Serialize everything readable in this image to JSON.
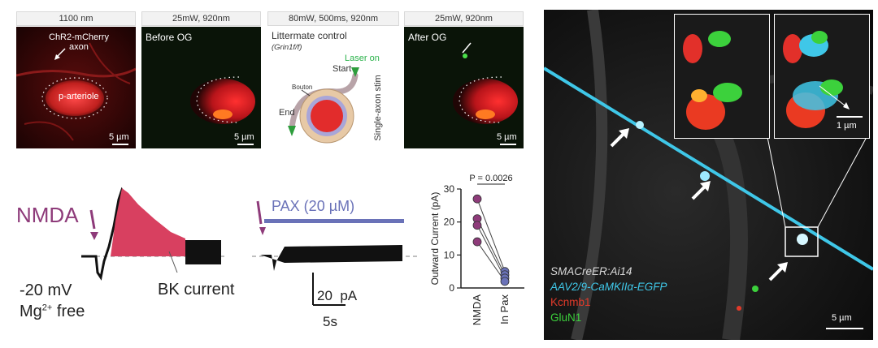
{
  "panel_headers": [
    "1100 nm",
    "25mW, 920nm",
    "80mW, 500ms, 920nm",
    "25mW, 920nm"
  ],
  "panel1": {
    "axon_label": "ChR2-mCherry\naxon",
    "vessel_label": "p-arteriole",
    "scale": "5 µm"
  },
  "panel2": {
    "title": "Before OG",
    "scale": "5 µm"
  },
  "panel3": {
    "title": "Littermate control",
    "genotype": "(Grin1f/f)",
    "laser": "Laser on",
    "start": "Start",
    "bouton": "Bouton",
    "end": "End",
    "stim": "Single-axon stim"
  },
  "panel4": {
    "title": "After OG",
    "scale": "5 µm"
  },
  "traces": {
    "nmda_label": "NMDA",
    "voltage": "-20 mV",
    "mg_free": "Mg",
    "mg_sup": "2+",
    "mg_free_suffix": " free",
    "bk_label": "BK current",
    "pax_label": "PAX (20 µM)",
    "scale_y": "20  pA",
    "scale_x": "5s"
  },
  "chart_data": {
    "type": "scatter",
    "title": "",
    "ylabel": "Outward Current (pA)",
    "categories": [
      "NMDA",
      "In Pax"
    ],
    "ylim": [
      0,
      30
    ],
    "yticks": [
      0,
      10,
      20,
      30
    ],
    "pvalue_label": "P = 0.0026",
    "pairs": [
      {
        "NMDA": 27,
        "In Pax": 5
      },
      {
        "NMDA": 21,
        "In Pax": 4
      },
      {
        "NMDA": 19,
        "In Pax": 3
      },
      {
        "NMDA": 14,
        "In Pax": 2
      }
    ],
    "colors": {
      "NMDA": "#8e3b7a",
      "In Pax": "#6a72b8"
    }
  },
  "confocal": {
    "legend": [
      "SMACreER:Ai14",
      "AAV2/9-CaMKIIα-EGFP",
      "Kcnmb1",
      "GluN1"
    ],
    "legend_colors": [
      "#d8d8d8",
      "#3fc7e8",
      "#e23a2a",
      "#3cd13c"
    ],
    "scale": "5 µm",
    "inset_scale": "1 µm"
  }
}
